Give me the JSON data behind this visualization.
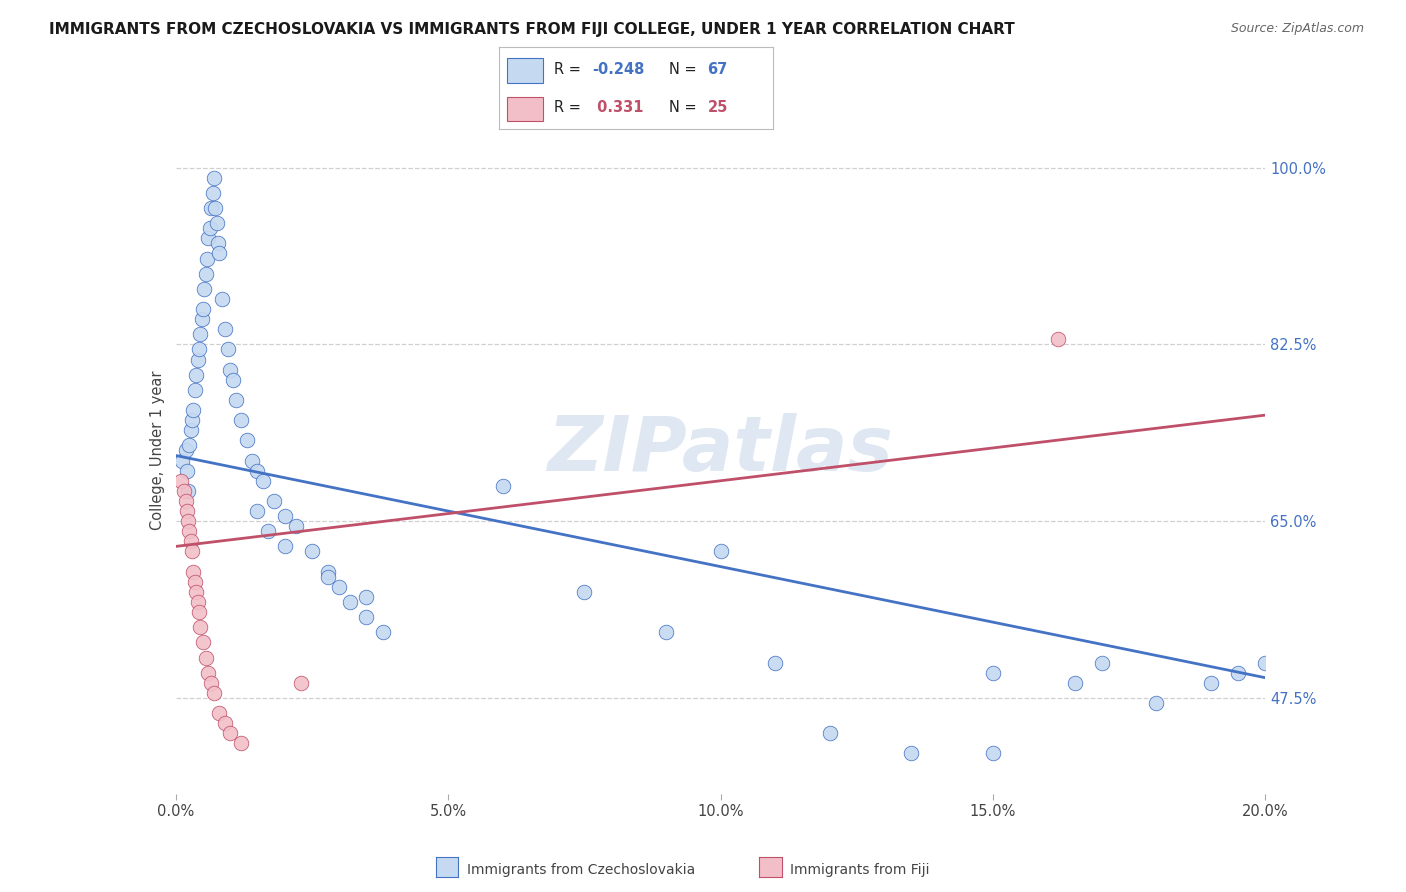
{
  "title": "IMMIGRANTS FROM CZECHOSLOVAKIA VS IMMIGRANTS FROM FIJI COLLEGE, UNDER 1 YEAR CORRELATION CHART",
  "source": "Source: ZipAtlas.com",
  "ylabel": "College, Under 1 year",
  "yticks_labels": [
    "47.5%",
    "65.0%",
    "82.5%",
    "100.0%"
  ],
  "ytick_vals": [
    0.475,
    0.65,
    0.825,
    1.0
  ],
  "xtick_vals": [
    0.0,
    0.05,
    0.1,
    0.15,
    0.2
  ],
  "xtick_labels": [
    "0.0%",
    "5.0%",
    "10.0%",
    "15.0%",
    "20.0%"
  ],
  "xmin": 0.0,
  "xmax": 0.2,
  "ymin": 0.38,
  "ymax": 1.06,
  "blue_color_fill": "#c5d9f1",
  "blue_color_edge": "#4472c4",
  "pink_color_fill": "#f2bfc8",
  "pink_color_edge": "#c0506a",
  "line_blue_color": "#4472c4",
  "line_pink_color": "#c0506a",
  "watermark": "ZIPatlas",
  "blue_line_x0": 0.0,
  "blue_line_y0": 0.715,
  "blue_line_x1": 0.2,
  "blue_line_y1": 0.495,
  "pink_line_x0": 0.0,
  "pink_line_y0": 0.625,
  "pink_line_x1": 0.2,
  "pink_line_y1": 0.755,
  "blue_scatter_x": [
    0.0012,
    0.0018,
    0.002,
    0.0022,
    0.0025,
    0.0028,
    0.003,
    0.0032,
    0.0035,
    0.0038,
    0.004,
    0.0042,
    0.0045,
    0.0048,
    0.005,
    0.0052,
    0.0055,
    0.0058,
    0.006,
    0.0062,
    0.0065,
    0.0068,
    0.007,
    0.0072,
    0.0075,
    0.0078,
    0.008,
    0.0085,
    0.009,
    0.0095,
    0.01,
    0.0105,
    0.011,
    0.012,
    0.013,
    0.014,
    0.015,
    0.016,
    0.018,
    0.02,
    0.022,
    0.025,
    0.028,
    0.03,
    0.032,
    0.035,
    0.038,
    0.015,
    0.017,
    0.02,
    0.028,
    0.035,
    0.06,
    0.075,
    0.09,
    0.1,
    0.11,
    0.12,
    0.135,
    0.15,
    0.15,
    0.165,
    0.17,
    0.18,
    0.19,
    0.195,
    0.2
  ],
  "blue_scatter_y": [
    0.71,
    0.72,
    0.7,
    0.68,
    0.725,
    0.74,
    0.75,
    0.76,
    0.78,
    0.795,
    0.81,
    0.82,
    0.835,
    0.85,
    0.86,
    0.88,
    0.895,
    0.91,
    0.93,
    0.94,
    0.96,
    0.975,
    0.99,
    0.96,
    0.945,
    0.925,
    0.915,
    0.87,
    0.84,
    0.82,
    0.8,
    0.79,
    0.77,
    0.75,
    0.73,
    0.71,
    0.7,
    0.69,
    0.67,
    0.655,
    0.645,
    0.62,
    0.6,
    0.585,
    0.57,
    0.555,
    0.54,
    0.66,
    0.64,
    0.625,
    0.595,
    0.575,
    0.685,
    0.58,
    0.54,
    0.62,
    0.51,
    0.44,
    0.42,
    0.42,
    0.5,
    0.49,
    0.51,
    0.47,
    0.49,
    0.5,
    0.51
  ],
  "pink_scatter_x": [
    0.001,
    0.0015,
    0.0018,
    0.002,
    0.0022,
    0.0025,
    0.0028,
    0.003,
    0.0032,
    0.0035,
    0.0038,
    0.004,
    0.0042,
    0.0045,
    0.005,
    0.0055,
    0.006,
    0.0065,
    0.007,
    0.008,
    0.009,
    0.01,
    0.012,
    0.023,
    0.162
  ],
  "pink_scatter_y": [
    0.69,
    0.68,
    0.67,
    0.66,
    0.65,
    0.64,
    0.63,
    0.62,
    0.6,
    0.59,
    0.58,
    0.57,
    0.56,
    0.545,
    0.53,
    0.515,
    0.5,
    0.49,
    0.48,
    0.46,
    0.45,
    0.44,
    0.43,
    0.49,
    0.83
  ]
}
